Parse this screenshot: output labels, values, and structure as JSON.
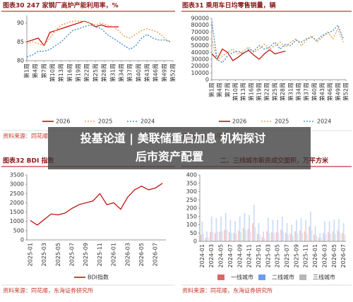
{
  "chart_data": [
    {
      "type": "line",
      "title": "图表30  247 家钢厂高炉产能利用率，%",
      "source": "资料来源：同花顺",
      "legend": "bottom",
      "x": [
        1,
        3,
        5,
        7,
        9,
        11,
        13,
        15,
        17,
        19,
        21,
        23,
        25,
        27,
        29,
        31,
        33,
        35,
        37,
        39,
        41,
        43,
        45,
        47,
        49,
        51
      ],
      "xlim": [
        1,
        52
      ],
      "xticks": [
        {
          "value": 1,
          "label": "第1周"
        },
        {
          "value": 4,
          "label": "第4周"
        },
        {
          "value": 7,
          "label": "第7周"
        },
        {
          "value": 10,
          "label": "第10周"
        },
        {
          "value": 13,
          "label": "第13周"
        },
        {
          "value": 16,
          "label": "第16周"
        },
        {
          "value": 19,
          "label": "第19周"
        },
        {
          "value": 22,
          "label": "第22周"
        },
        {
          "value": 25,
          "label": "第25周"
        },
        {
          "value": 28,
          "label": "第28周"
        },
        {
          "value": 31,
          "label": "第31周"
        },
        {
          "value": 34,
          "label": "第34周"
        },
        {
          "value": 37,
          "label": "第37周"
        },
        {
          "value": 40,
          "label": "第40周"
        },
        {
          "value": 43,
          "label": "第43周"
        },
        {
          "value": 46,
          "label": "第46周"
        },
        {
          "value": 49,
          "label": "第49周"
        },
        {
          "value": 52,
          "label": "第52周"
        }
      ],
      "ylim": [
        80,
        92
      ],
      "yticks": [
        80,
        85,
        90
      ],
      "series": [
        {
          "name": "2026",
          "color": "#c00000",
          "dash": false,
          "values": [
            85,
            85.5,
            86,
            84,
            87.5,
            88,
            88.5,
            89,
            89.5,
            90,
            90.5,
            90,
            89,
            89.5,
            89,
            89,
            89,
            null,
            null,
            null,
            null,
            null,
            null,
            null,
            null,
            null
          ]
        },
        {
          "name": "2025",
          "color": "#f0a050",
          "dash": true,
          "values": [
            84.5,
            85,
            84.5,
            84,
            86,
            88,
            89.5,
            90,
            90.5,
            90.5,
            90.5,
            90,
            89.5,
            90,
            89.5,
            89,
            88,
            86.5,
            86,
            87,
            88,
            88.5,
            88,
            87.5,
            86,
            85
          ]
        },
        {
          "name": "2024",
          "color": "#4a90d0",
          "dash": true,
          "values": [
            81,
            81.5,
            82.5,
            82.5,
            83,
            84,
            85,
            86.5,
            88,
            88.5,
            89,
            89.5,
            89,
            88.5,
            87,
            86,
            85,
            84,
            83,
            84,
            86,
            87,
            86,
            85.5,
            85.5,
            85
          ]
        }
      ]
    },
    {
      "type": "line",
      "title": "图表31  乘用车日均零售销量，辆",
      "source": "资料来源：同花顺",
      "legend": "bottom",
      "x": [
        1,
        3,
        5,
        7,
        9,
        11,
        13,
        15,
        17,
        19,
        21,
        23,
        25,
        27,
        29,
        31,
        33,
        35,
        37,
        39,
        41,
        43,
        45,
        47,
        49,
        51
      ],
      "xlim": [
        1,
        52
      ],
      "xticks": [
        {
          "value": 1,
          "label": "第1周"
        },
        {
          "value": 4,
          "label": "第4周"
        },
        {
          "value": 7,
          "label": "第7周"
        },
        {
          "value": 10,
          "label": "第10周"
        },
        {
          "value": 13,
          "label": "第13周"
        },
        {
          "value": 16,
          "label": "第16周"
        },
        {
          "value": 19,
          "label": "第19周"
        },
        {
          "value": 22,
          "label": "第22周"
        },
        {
          "value": 25,
          "label": "第25周"
        },
        {
          "value": 28,
          "label": "第28周"
        },
        {
          "value": 31,
          "label": "第31周"
        },
        {
          "value": 34,
          "label": "第34周"
        },
        {
          "value": 37,
          "label": "第37周"
        },
        {
          "value": 40,
          "label": "第40周"
        },
        {
          "value": 43,
          "label": "第43周"
        },
        {
          "value": 46,
          "label": "第46周"
        },
        {
          "value": 49,
          "label": "第49周"
        },
        {
          "value": 52,
          "label": "第52周"
        }
      ],
      "ylim": [
        0,
        90000
      ],
      "yticks": [
        0,
        10000,
        20000,
        30000,
        40000,
        50000,
        60000,
        70000,
        80000,
        90000
      ],
      "series": [
        {
          "name": "2026",
          "color": "#c00000",
          "dash": false,
          "values": [
            38000,
            30000,
            45000,
            40000,
            28000,
            33000,
            39000,
            43000,
            36000,
            30000,
            38000,
            44000,
            38000,
            40000,
            42000,
            null,
            null,
            null,
            null,
            null,
            null,
            null,
            null,
            null,
            null,
            null
          ]
        },
        {
          "name": "2025",
          "color": "#f0a050",
          "dash": true,
          "values": [
            60000,
            28000,
            35000,
            40000,
            45000,
            38000,
            42000,
            48000,
            40000,
            45000,
            52000,
            45000,
            50000,
            55000,
            48000,
            55000,
            60000,
            50000,
            58000,
            65000,
            55000,
            62000,
            70000,
            60000,
            75000,
            55000
          ]
        },
        {
          "name": "2024",
          "color": "#4a90d0",
          "dash": true,
          "values": [
            85000,
            30000,
            25000,
            35000,
            40000,
            42000,
            38000,
            45000,
            42000,
            50000,
            45000,
            48000,
            55000,
            45000,
            52000,
            50000,
            58000,
            55000,
            60000,
            62000,
            58000,
            65000,
            68000,
            72000,
            80000,
            60000
          ]
        }
      ]
    },
    {
      "type": "line",
      "title": "图表32  BDI 指数",
      "source": "资料来源：同花顺，东海证券研究所",
      "legend": "bottom",
      "categories": [
        "2025-01",
        null,
        "2025-03",
        null,
        "2025-05",
        null,
        "2025-07",
        null,
        "2025-09",
        null,
        "2025-11",
        null,
        "2026-01",
        null,
        "2026-03",
        null,
        "2026-05",
        null,
        "2026-07",
        null
      ],
      "ylim": [
        0,
        3500
      ],
      "yticks": [
        0,
        500,
        1000,
        1500,
        2000,
        2500,
        3000,
        3500
      ],
      "series": [
        {
          "name": "BDI指数",
          "color": "#c00000",
          "dash": false,
          "values": [
            1050,
            800,
            1100,
            1400,
            1350,
            1450,
            1700,
            1900,
            2000,
            2100,
            2500,
            1900,
            2000,
            1650,
            2300,
            2700,
            2900,
            2700,
            2800,
            3050
          ]
        }
      ]
    },
    {
      "type": "bar",
      "title": "二、三线城市新房成交面积，万平方米",
      "source": "资料来源：同花顺，东海证券研究所",
      "legend": "bottom",
      "categories": [
        "2024-01",
        null,
        "2024-03",
        null,
        "2024-05",
        null,
        "2024-07",
        null,
        "2024-09",
        null,
        "2024-11",
        null,
        "2025-01",
        null,
        "2025-03",
        null,
        "2025-05",
        null,
        "2025-07",
        null,
        "2025-09",
        null,
        "2025-11",
        null,
        "2026-01",
        null,
        "2026-03",
        null,
        "2026-05",
        null,
        "2026-07"
      ],
      "ylim": [
        0,
        400
      ],
      "yticks": [
        0,
        50,
        100,
        150,
        200,
        250,
        300,
        350,
        400
      ],
      "series": [
        {
          "name": "一线城市",
          "color": "#e06666",
          "values": [
            40,
            20,
            55,
            50,
            60,
            70,
            55,
            50,
            65,
            80,
            75,
            110,
            45,
            25,
            60,
            55,
            55,
            70,
            50,
            45,
            60,
            65,
            60,
            90,
            40,
            20,
            50,
            55,
            60,
            65,
            50
          ]
        },
        {
          "name": "二线城市",
          "color": "#6d9eeb",
          "values": [
            120,
            60,
            150,
            140,
            150,
            170,
            130,
            120,
            150,
            170,
            160,
            220,
            110,
            60,
            140,
            130,
            130,
            150,
            110,
            100,
            130,
            140,
            130,
            180,
            90,
            50,
            120,
            120,
            130,
            135,
            110
          ]
        },
        {
          "name": "三线城市",
          "color": "#b7b7b7",
          "values": [
            50,
            25,
            60,
            55,
            60,
            70,
            50,
            45,
            55,
            65,
            60,
            85,
            40,
            20,
            50,
            50,
            50,
            55,
            40,
            35,
            45,
            50,
            45,
            65,
            35,
            20,
            40,
            45,
            45,
            50,
            40
          ]
        }
      ]
    }
  ],
  "banner": {
    "lines": [
      "投基论道 | 美联储重启加息 机构探讨",
      "后市资产配置"
    ]
  }
}
